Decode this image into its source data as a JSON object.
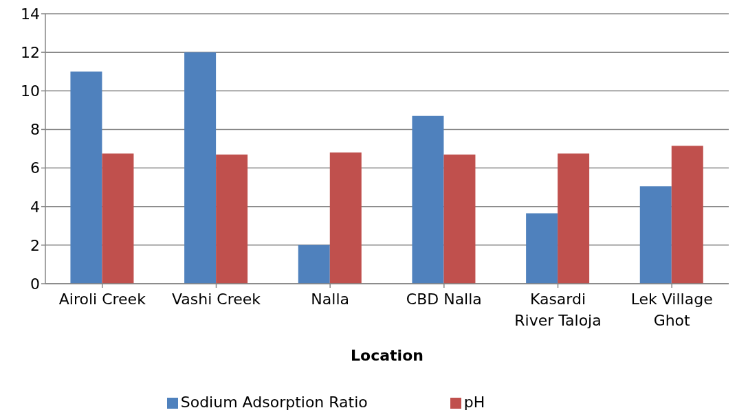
{
  "chart_data": {
    "type": "bar",
    "xlabel": "Location",
    "categories": [
      "Airoli Creek",
      "Vashi Creek",
      "Nalla",
      "CBD Nalla",
      "Kasardi River Taloja",
      "Lek Village Ghot"
    ],
    "series": [
      {
        "name": "Sodium Adsorption Ratio",
        "color": "#4f81bd",
        "values": [
          11.0,
          12.0,
          2.0,
          8.7,
          3.65,
          5.05
        ]
      },
      {
        "name": "pH",
        "color": "#c0504d",
        "values": [
          6.75,
          6.7,
          6.8,
          6.7,
          6.75,
          7.15
        ]
      }
    ],
    "ylim": [
      0,
      14
    ],
    "yticks": [
      0,
      2,
      4,
      6,
      8,
      10,
      12,
      14
    ],
    "grid": "y",
    "legend": "bottom"
  }
}
